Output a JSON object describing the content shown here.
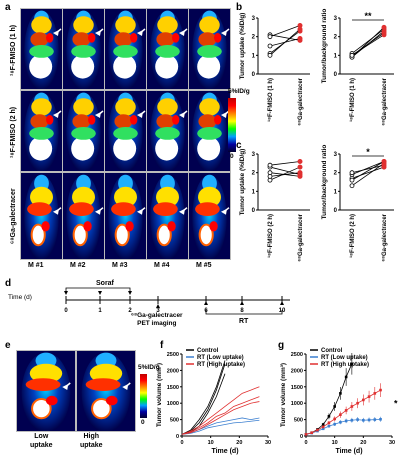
{
  "panel_labels": [
    "a",
    "b",
    "c",
    "d",
    "e",
    "f",
    "g"
  ],
  "panel_a": {
    "row_labels": [
      "¹⁸F-FMISO (1 h)",
      "¹⁸F-FMISO (2 h)",
      "⁶⁸Ga-galectracer"
    ],
    "mouse_labels": [
      "M #1",
      "M #2",
      "M #3",
      "M #4",
      "M #5"
    ],
    "colorbar": {
      "max": "5%ID/g",
      "min": "0"
    }
  },
  "panel_d": {
    "time_label": "Time (d)",
    "soraf": "Soraf",
    "imaging": "⁶⁸Ga-galectracer\nPET imaging",
    "rt": "RT",
    "ticks": [
      "0",
      "1",
      "2",
      "3",
      "6",
      "8",
      "10"
    ]
  },
  "panel_e": {
    "labels": [
      "Low\nuptake",
      "High\nuptake"
    ],
    "colorbar": {
      "max": "5%ID/g",
      "min": "0"
    }
  },
  "chart_data": [
    {
      "type": "line",
      "panel": "b-left",
      "ylabel": "Tumor uptake (%ID/g)",
      "categories": [
        "¹⁸F-FMISO (1 h)",
        "⁶⁸Ga-galectracer"
      ],
      "series": [
        {
          "values": [
            1.1,
            2.3
          ]
        },
        {
          "values": [
            1.0,
            2.4
          ]
        },
        {
          "values": [
            1.5,
            1.9
          ]
        },
        {
          "values": [
            2.1,
            1.8
          ]
        },
        {
          "values": [
            2.0,
            2.6
          ]
        }
      ],
      "ylim": [
        0,
        3
      ],
      "yticks": [
        "0",
        "1",
        "2",
        "3"
      ]
    },
    {
      "type": "line",
      "panel": "b-right",
      "ylabel": "Tumor/background ratio",
      "categories": [
        "¹⁸F-FMISO (1 h)",
        "⁶⁸Ga-galectracer"
      ],
      "series": [
        {
          "values": [
            0.9,
            2.3
          ]
        },
        {
          "values": [
            1.0,
            2.1
          ]
        },
        {
          "values": [
            1.1,
            2.4
          ]
        },
        {
          "values": [
            0.9,
            2.5
          ]
        },
        {
          "values": [
            1.0,
            2.2
          ]
        }
      ],
      "ylim": [
        0,
        3
      ],
      "yticks": [
        "0",
        "1",
        "2",
        "3"
      ],
      "annotation": "**"
    },
    {
      "type": "line",
      "panel": "c-left",
      "ylabel": "Tumor uptake (%ID/g)",
      "categories": [
        "¹⁸F-FMISO (2 h)",
        "⁶⁸Ga-galectracer"
      ],
      "series": [
        {
          "values": [
            1.6,
            2.3
          ]
        },
        {
          "values": [
            2.3,
            1.9
          ]
        },
        {
          "values": [
            2.4,
            2.6
          ]
        },
        {
          "values": [
            1.8,
            2.0
          ]
        },
        {
          "values": [
            2.0,
            1.8
          ]
        }
      ],
      "ylim": [
        0,
        3
      ],
      "yticks": [
        "0",
        "1",
        "2",
        "3"
      ]
    },
    {
      "type": "line",
      "panel": "c-right",
      "ylabel": "Tumor/background ratio",
      "categories": [
        "¹⁸F-FMISO (2 h)",
        "⁶⁸Ga-galectracer"
      ],
      "series": [
        {
          "values": [
            1.3,
            2.5
          ]
        },
        {
          "values": [
            1.9,
            2.6
          ]
        },
        {
          "values": [
            1.7,
            2.3
          ]
        },
        {
          "values": [
            2.0,
            2.4
          ]
        },
        {
          "values": [
            1.6,
            2.6
          ]
        }
      ],
      "ylim": [
        0,
        3
      ],
      "yticks": [
        "0",
        "1",
        "2",
        "3"
      ],
      "annotation": "*"
    },
    {
      "type": "line",
      "panel": "f",
      "xlabel": "Time (d)",
      "ylabel": "Tumor volume (mm³)",
      "xlim": [
        0,
        30
      ],
      "ylim": [
        0,
        2500
      ],
      "xticks": [
        "0",
        "10",
        "20",
        "30"
      ],
      "yticks": [
        "0",
        "500",
        "1000",
        "1500",
        "2000",
        "2500"
      ],
      "legend": [
        "Control",
        "RT (Low uptake)",
        "RT (High uptake)"
      ],
      "series": [
        {
          "name": "Control",
          "x": [
            0,
            3,
            6,
            9,
            12,
            15
          ],
          "values": [
            50,
            150,
            400,
            800,
            1400,
            2200
          ]
        },
        {
          "name": "Control",
          "x": [
            0,
            3,
            6,
            9,
            12,
            15
          ],
          "values": [
            50,
            120,
            300,
            700,
            1200,
            1900
          ]
        },
        {
          "name": "Control",
          "x": [
            0,
            3,
            6,
            9,
            12,
            15
          ],
          "values": [
            50,
            180,
            500,
            900,
            1500,
            2300
          ]
        },
        {
          "name": "RT (Low uptake)",
          "x": [
            0,
            3,
            6,
            9,
            12,
            15,
            18,
            21,
            24,
            27
          ],
          "values": [
            50,
            100,
            200,
            300,
            400,
            450,
            500,
            550,
            500,
            550
          ]
        },
        {
          "name": "RT (Low uptake)",
          "x": [
            0,
            3,
            6,
            9,
            12,
            15,
            18,
            21,
            24,
            27
          ],
          "values": [
            50,
            80,
            150,
            250,
            300,
            350,
            400,
            420,
            450,
            480
          ]
        },
        {
          "name": "RT (High uptake)",
          "x": [
            0,
            3,
            6,
            9,
            12,
            15,
            18,
            21,
            24,
            27
          ],
          "values": [
            50,
            150,
            300,
            500,
            700,
            900,
            1100,
            1300,
            1400,
            1500
          ]
        },
        {
          "name": "RT (High uptake)",
          "x": [
            0,
            3,
            6,
            9,
            12,
            15,
            18,
            21,
            24,
            27
          ],
          "values": [
            50,
            120,
            250,
            400,
            600,
            700,
            900,
            1000,
            1100,
            1200
          ]
        },
        {
          "name": "RT (High uptake)",
          "x": [
            0,
            3,
            6,
            9,
            12,
            15,
            18,
            21,
            24,
            27
          ],
          "values": [
            50,
            100,
            200,
            350,
            500,
            650,
            800,
            900,
            1000,
            1050
          ]
        }
      ]
    },
    {
      "type": "line",
      "panel": "g",
      "xlabel": "Time (d)",
      "ylabel": "Tumor volume (mm³)",
      "xlim": [
        0,
        30
      ],
      "ylim": [
        0,
        2500
      ],
      "xticks": [
        "0",
        "10",
        "20",
        "30"
      ],
      "yticks": [
        "0",
        "500",
        "1000",
        "1500",
        "2000",
        "2500"
      ],
      "legend": [
        "Control",
        "RT (Low uptake)",
        "RT (High uptake)"
      ],
      "annotation": "*",
      "series": [
        {
          "name": "Control",
          "x": [
            0,
            2,
            4,
            6,
            8,
            10,
            12,
            14,
            16
          ],
          "values": [
            50,
            100,
            200,
            350,
            600,
            900,
            1300,
            1800,
            2200
          ]
        },
        {
          "name": "RT (Low uptake)",
          "x": [
            0,
            2,
            4,
            6,
            8,
            10,
            12,
            14,
            16,
            18,
            20,
            22,
            24,
            26
          ],
          "values": [
            50,
            90,
            150,
            220,
            300,
            360,
            420,
            460,
            480,
            500,
            480,
            490,
            500,
            510
          ]
        },
        {
          "name": "RT (High uptake)",
          "x": [
            0,
            2,
            4,
            6,
            8,
            10,
            12,
            14,
            16,
            18,
            20,
            22,
            24,
            26
          ],
          "values": [
            50,
            100,
            180,
            280,
            400,
            520,
            650,
            780,
            900,
            1000,
            1100,
            1200,
            1300,
            1400
          ]
        }
      ]
    }
  ],
  "colors": {
    "black": "#000000",
    "blue": "#3b7fd0",
    "red": "#e03030"
  }
}
